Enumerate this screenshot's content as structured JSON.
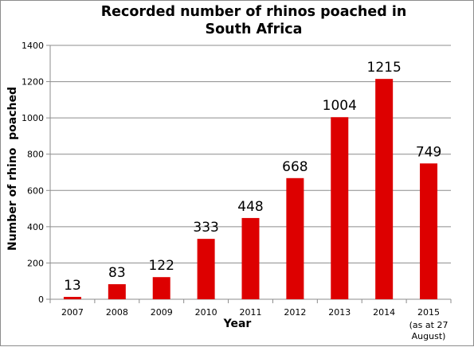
{
  "chart_data": {
    "type": "bar",
    "title": "Recorded number of rhinos poached in South Africa",
    "xlabel": "Year",
    "ylabel": "Number of rhino  poached",
    "categories": [
      "2007",
      "2008",
      "2009",
      "2010",
      "2011",
      "2012",
      "2013",
      "2014",
      "2015"
    ],
    "category_notes": [
      "",
      "",
      "",
      "",
      "",
      "",
      "",
      "",
      "(as at 27 August)"
    ],
    "values": [
      13,
      83,
      122,
      333,
      448,
      668,
      1004,
      1215,
      749
    ],
    "data_labels": [
      "13",
      "83",
      "122",
      "333",
      "448",
      "668",
      "1004",
      "1215",
      "749"
    ],
    "ylim": [
      0,
      1400
    ],
    "yticks": [
      0,
      200,
      400,
      600,
      800,
      1000,
      1200,
      1400
    ],
    "grid": true,
    "legend": "none",
    "bar_color": "#dd0000"
  }
}
